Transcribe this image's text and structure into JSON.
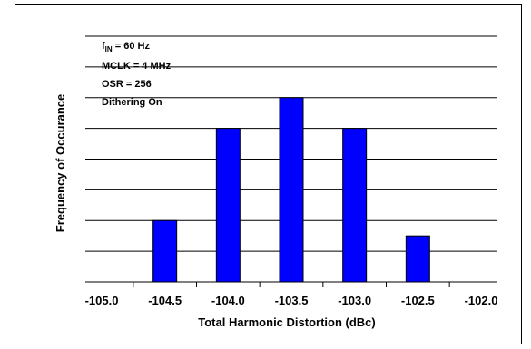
{
  "chart_data": {
    "type": "bar",
    "xlabel": "Total Harmonic Distortion (dBc)",
    "ylabel": "Frequency of Occurance",
    "x_ticks": [
      "-105.0",
      "-104.5",
      "-104.0",
      "-103.5",
      "-103.0",
      "-102.5",
      "-102.0"
    ],
    "categories": [
      "-104.5",
      "-104.0",
      "-103.5",
      "-103.0",
      "-102.5"
    ],
    "values": [
      2,
      5,
      6,
      5,
      1.5
    ],
    "ylim": [
      0,
      8
    ],
    "grid": true,
    "bar_color": "#0000ff",
    "annotations": {
      "fin_prefix": "f",
      "fin_sub": "IN",
      "fin_suffix": " = 60 Hz",
      "mclk": "MCLK = 4 MHz",
      "osr": "OSR = 256",
      "dithering": "Dithering On"
    }
  }
}
